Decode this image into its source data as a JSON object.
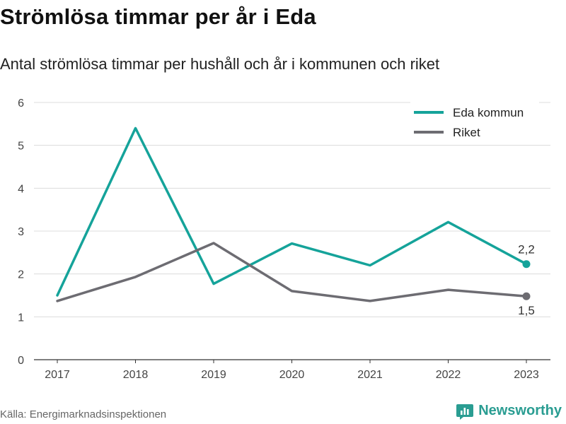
{
  "chart_data": {
    "type": "line",
    "title": "Strömlösa timmar per år i Eda",
    "subtitle": "Antal strömlösa timmar per hushåll och år i kommunen och riket",
    "x": [
      "2017",
      "2018",
      "2019",
      "2020",
      "2021",
      "2022",
      "2023"
    ],
    "ylim": [
      0,
      6
    ],
    "yticks": [
      0,
      1,
      2,
      3,
      4,
      5,
      6
    ],
    "grid": true,
    "legend_position": "top-right",
    "series": [
      {
        "name": "Eda kommun",
        "color": "#15a39a",
        "values": [
          1.5,
          5.4,
          1.77,
          2.71,
          2.2,
          3.21,
          2.23
        ],
        "end_label": "2,2"
      },
      {
        "name": "Riket",
        "color": "#6d6c72",
        "values": [
          1.37,
          1.93,
          2.72,
          1.6,
          1.37,
          1.63,
          1.48
        ],
        "end_label": "1,5"
      }
    ]
  },
  "source": "Källa: Energimarknadsinspektionen",
  "brand": {
    "name": "Newsworthy",
    "color": "#2a9d92",
    "icon": "newsworthy-logo-icon"
  }
}
